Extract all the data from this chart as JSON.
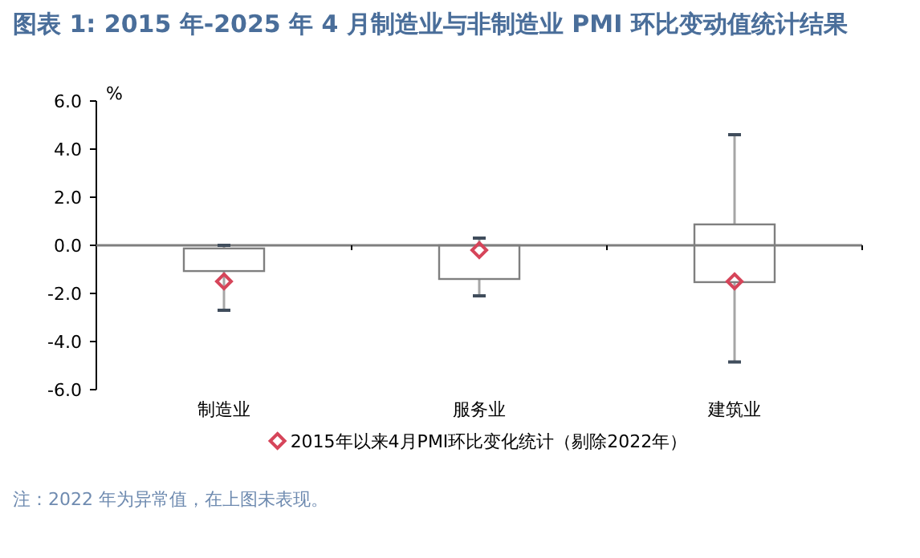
{
  "chart_data": {
    "type": "box",
    "title": "图表 1:   2015 年-2025 年 4 月制造业与非制造业 PMI 环比变动值统计结果",
    "ylabel": "%",
    "categories": [
      "制造业",
      "服务业",
      "建筑业"
    ],
    "series": [
      {
        "color": "#7f7f7f",
        "boxes": [
          {
            "low": -2.7,
            "q1": -1.07,
            "q3": -0.13,
            "high": 0.0
          },
          {
            "low": -2.1,
            "q1": -1.4,
            "q3": 0.0,
            "high": 0.3
          },
          {
            "low": -4.85,
            "q1": -1.53,
            "q3": 0.87,
            "high": 4.6
          }
        ]
      },
      {
        "name": "2015年以来4月PMI环比变化统计（剔除2022年）",
        "type": "scatter",
        "color": "#d6455a",
        "marker": "diamond",
        "values": [
          -1.5,
          -0.2,
          -1.5
        ]
      }
    ],
    "ylim": [
      -6,
      6
    ],
    "yticks": [
      {
        "value": 6,
        "label": "6.0"
      },
      {
        "value": 4,
        "label": "4.0"
      },
      {
        "value": 2,
        "label": "2.0"
      },
      {
        "value": 0,
        "label": "0.0"
      },
      {
        "value": -2,
        "label": "-2.0"
      },
      {
        "value": -4,
        "label": "-4.0"
      },
      {
        "value": -6,
        "label": "-6.0"
      }
    ],
    "legend": "bottom",
    "annotations": [
      "注：2022 年为异常值，在上图未表现。"
    ]
  }
}
